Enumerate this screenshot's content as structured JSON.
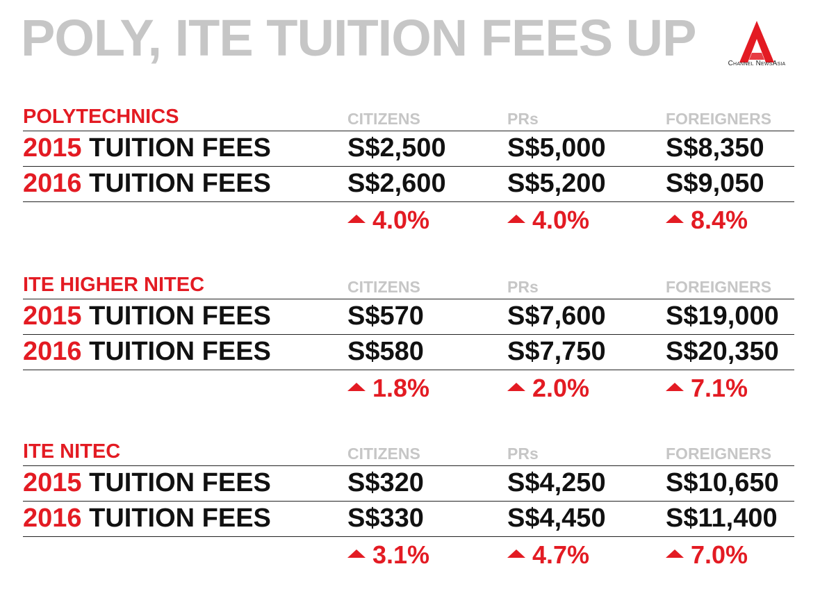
{
  "title": "POLY, ITE TUITION FEES UP",
  "brand": {
    "name": "Channel NewsAsia",
    "color": "#e31b23"
  },
  "column_headers": [
    "CITIZENS",
    "PRs",
    "FOREIGNERS"
  ],
  "row_label_suffix": "TUITION FEES",
  "sections": [
    {
      "name": "POLYTECHNICS",
      "rows": [
        {
          "year": "2015",
          "values": [
            "S$2,500",
            "S$5,000",
            "S$8,350"
          ]
        },
        {
          "year": "2016",
          "values": [
            "S$2,600",
            "S$5,200",
            "S$9,050"
          ]
        }
      ],
      "changes": [
        "4.0%",
        "4.0%",
        "8.4%"
      ]
    },
    {
      "name": "ITE HIGHER NITEC",
      "rows": [
        {
          "year": "2015",
          "values": [
            "S$570",
            "S$7,600",
            "S$19,000"
          ]
        },
        {
          "year": "2016",
          "values": [
            "S$580",
            "S$7,750",
            "S$20,350"
          ]
        }
      ],
      "changes": [
        "1.8%",
        "2.0%",
        "7.1%"
      ]
    },
    {
      "name": "ITE NITEC",
      "rows": [
        {
          "year": "2015",
          "values": [
            "S$320",
            "S$4,250",
            "S$10,650"
          ]
        },
        {
          "year": "2016",
          "values": [
            "S$330",
            "S$4,450",
            "S$11,400"
          ]
        }
      ],
      "changes": [
        "3.1%",
        "4.7%",
        "7.0%"
      ]
    }
  ],
  "colors": {
    "accent": "#e31b23",
    "muted": "#c6c6c6",
    "text": "#111111"
  }
}
